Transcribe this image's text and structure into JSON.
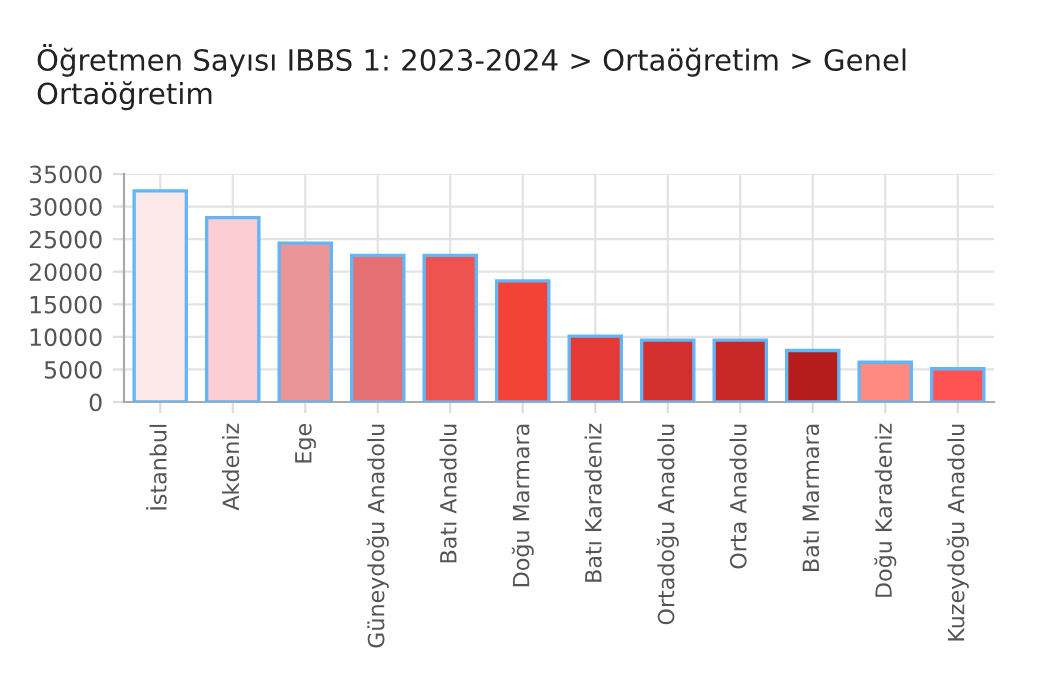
{
  "chart_data": {
    "type": "bar",
    "title": "Öğretmen Sayısı IBBS 1: 2023-2024 > Ortaöğretim > Genel Ortaöğretim",
    "categories": [
      "İstanbul",
      "Akdeniz",
      "Ege",
      "Güneydoğu Anadolu",
      "Batı Anadolu",
      "Doğu Marmara",
      "Batı Karadeniz",
      "Ortadoğu Anadolu",
      "Orta Anadolu",
      "Batı Marmara",
      "Doğu Karadeniz",
      "Kuzeydoğu Anadolu"
    ],
    "values": [
      32400,
      28300,
      24400,
      22500,
      22500,
      18600,
      10100,
      9500,
      9500,
      7900,
      6100,
      5100
    ],
    "colors": [
      "#fde8ea",
      "#fccdd2",
      "#ec9598",
      "#e57073",
      "#ef5350",
      "#f44336",
      "#e53935",
      "#d32f2f",
      "#c62828",
      "#b71c1c",
      "#ff8a80",
      "#ff5252"
    ],
    "ylim": [
      0,
      35000
    ],
    "yticks": [
      0,
      5000,
      10000,
      15000,
      20000,
      25000,
      30000,
      35000
    ],
    "grid": true
  }
}
